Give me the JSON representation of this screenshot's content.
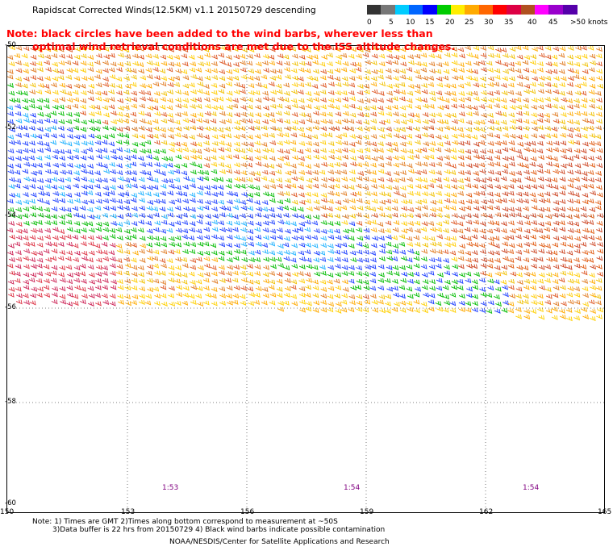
{
  "header": {
    "title": "Rapidscat Corrected Winds(12.5KM) v1.1 20150729 descending"
  },
  "note": {
    "line1": "Note: black circles have been added to the wind barbs, wherever less than",
    "line2": "optimal wind retrieval conditions are met due to the ISS altitude changes."
  },
  "colorbar": {
    "labels": [
      "0",
      "5",
      "10",
      "15",
      "20",
      "25",
      "30",
      "35",
      "40",
      "45",
      ">50 knots"
    ],
    "colors": [
      "#333333",
      "#777777",
      "#00ccff",
      "#0066ff",
      "#0000ff",
      "#00cc00",
      "#ffee00",
      "#ffaa00",
      "#ff6600",
      "#ff0000",
      "#dd0044",
      "#b05020",
      "#ff00ff",
      "#9900cc",
      "#5500aa"
    ]
  },
  "map": {
    "lat_labels": [
      "-50",
      "-52",
      "-54",
      "-56",
      "-58",
      "-60"
    ],
    "lon_labels": [
      "150",
      "153",
      "156",
      "159",
      "162",
      "165"
    ],
    "time_labels": [
      "1:53",
      "1:54",
      "1:54"
    ]
  },
  "footer": {
    "note1": "Note: 1) Times are GMT 2)Times along bottom correspond to measurement at ~50S",
    "note2": "3)Data buffer is 22 hrs from 20150729 4) Black wind barbs indicate possible contamination",
    "credit": "NOAA/NESDIS/Center for Satellite Applications and Research"
  }
}
